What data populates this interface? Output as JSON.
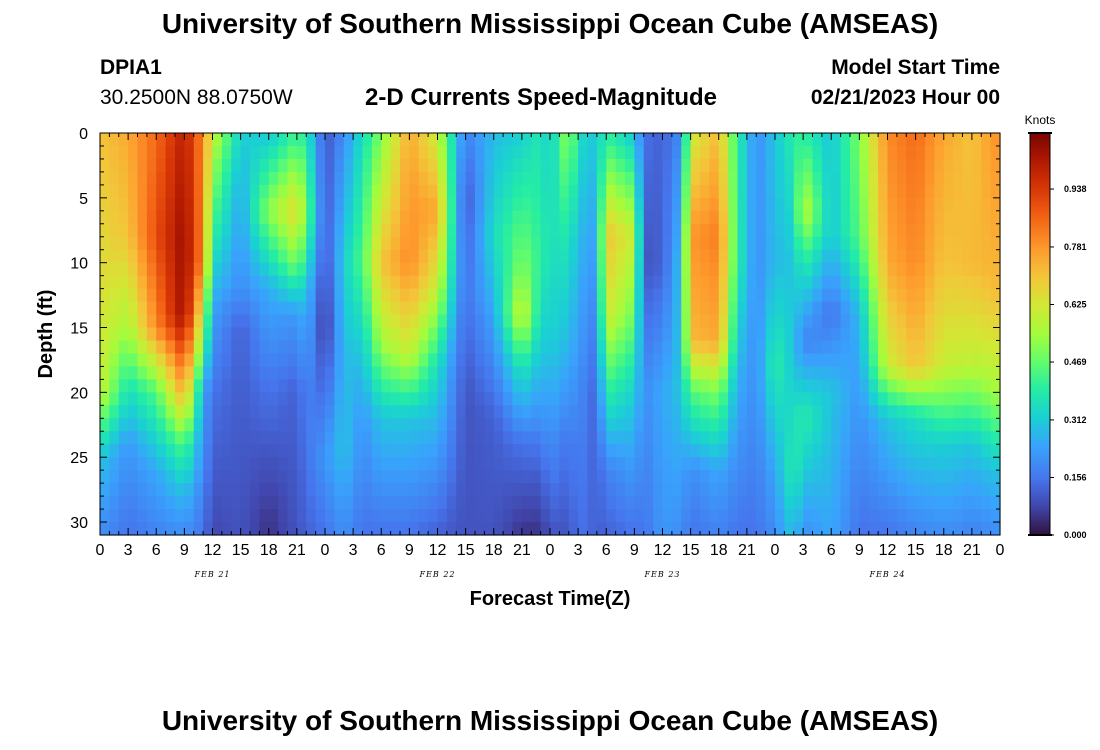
{
  "header": {
    "title": "University of Southern Mississippi Ocean Cube (AMSEAS)",
    "station": "DPIA1",
    "coordinates": "30.2500N  88.0750W",
    "chart_title": "2-D Currents Speed-Magnitude",
    "model_start_label": "Model Start Time",
    "model_start_value": "02/21/2023 Hour 00"
  },
  "footer": {
    "title": "University of Southern Mississippi Ocean Cube (AMSEAS)"
  },
  "chart_data": {
    "type": "heatmap",
    "title": "2-D Currents Speed-Magnitude",
    "xlabel": "Forecast Time(Z)",
    "ylabel": "Depth (ft)",
    "x_range": [
      0,
      96
    ],
    "x_unit": "hours since 02/21/2023 00Z",
    "x_tick_values": [
      0,
      3,
      6,
      9,
      12,
      15,
      18,
      21,
      24,
      27,
      30,
      33,
      36,
      39,
      42,
      45,
      48,
      51,
      54,
      57,
      60,
      63,
      66,
      69,
      72,
      75,
      78,
      81,
      84,
      87,
      90,
      93,
      96
    ],
    "x_tick_labels": [
      "0",
      "3",
      "6",
      "9",
      "12",
      "15",
      "18",
      "21",
      "0",
      "3",
      "6",
      "9",
      "12",
      "15",
      "18",
      "21",
      "0",
      "3",
      "6",
      "9",
      "12",
      "15",
      "18",
      "21",
      "0",
      "3",
      "6",
      "9",
      "12",
      "15",
      "18",
      "21",
      "0"
    ],
    "date_labels": [
      {
        "text": "FEB 21",
        "hour": 12
      },
      {
        "text": "FEB 22",
        "hour": 36
      },
      {
        "text": "FEB 23",
        "hour": 60
      },
      {
        "text": "FEB 24",
        "hour": 84
      }
    ],
    "y_range": [
      0,
      31
    ],
    "y_inverted": true,
    "y_ticks": [
      0,
      5,
      10,
      15,
      20,
      25,
      30
    ],
    "colorbar": {
      "unit": "Knots",
      "range": [
        0,
        1.09
      ],
      "ticks": [
        "0.000",
        "0.156",
        "0.312",
        "0.469",
        "0.625",
        "0.781",
        "0.938"
      ],
      "tick_values": [
        0.0,
        0.156,
        0.312,
        0.469,
        0.625,
        0.781,
        0.938
      ]
    },
    "columns": [
      {
        "hour": 0,
        "profile": [
          [
            0,
            0.7
          ],
          [
            20,
            0.6
          ],
          [
            25,
            0.3
          ],
          [
            31,
            0.2
          ]
        ]
      },
      {
        "hour": 3,
        "profile": [
          [
            0,
            0.75
          ],
          [
            8,
            0.7
          ],
          [
            15,
            0.55
          ],
          [
            20,
            0.35
          ],
          [
            24,
            0.22
          ],
          [
            31,
            0.15
          ]
        ]
      },
      {
        "hour": 6,
        "profile": [
          [
            0,
            0.85
          ],
          [
            8,
            0.9
          ],
          [
            15,
            0.8
          ],
          [
            20,
            0.45
          ],
          [
            26,
            0.25
          ],
          [
            31,
            0.18
          ]
        ]
      },
      {
        "hour": 9,
        "profile": [
          [
            0,
            1.0
          ],
          [
            8,
            1.05
          ],
          [
            14,
            1.05
          ],
          [
            20,
            0.75
          ],
          [
            24,
            0.45
          ],
          [
            28,
            0.28
          ],
          [
            31,
            0.2
          ]
        ]
      },
      {
        "hour": 11,
        "profile": [
          [
            0,
            0.8
          ],
          [
            10,
            0.8
          ],
          [
            16,
            0.5
          ],
          [
            20,
            0.25
          ],
          [
            31,
            0.15
          ]
        ]
      },
      {
        "hour": 12,
        "profile": [
          [
            0,
            0.6
          ],
          [
            8,
            0.4
          ],
          [
            13,
            0.25
          ],
          [
            20,
            0.15
          ],
          [
            31,
            0.08
          ]
        ]
      },
      {
        "hour": 15,
        "profile": [
          [
            0,
            0.32
          ],
          [
            5,
            0.25
          ],
          [
            12,
            0.2
          ],
          [
            15,
            0.12
          ],
          [
            31,
            0.1
          ]
        ]
      },
      {
        "hour": 18,
        "profile": [
          [
            0,
            0.3
          ],
          [
            6,
            0.52
          ],
          [
            12,
            0.26
          ],
          [
            20,
            0.15
          ],
          [
            30,
            0.05
          ]
        ]
      },
      {
        "hour": 21,
        "profile": [
          [
            0,
            0.42
          ],
          [
            6,
            0.66
          ],
          [
            10,
            0.5
          ],
          [
            14,
            0.22
          ],
          [
            20,
            0.12
          ],
          [
            31,
            0.1
          ]
        ]
      },
      {
        "hour": 22,
        "profile": [
          [
            0,
            0.38
          ],
          [
            6,
            0.5
          ],
          [
            12,
            0.3
          ],
          [
            20,
            0.18
          ],
          [
            31,
            0.12
          ]
        ]
      },
      {
        "hour": 24,
        "profile": [
          [
            0,
            0.1
          ],
          [
            8,
            0.1
          ],
          [
            15,
            0.05
          ],
          [
            25,
            0.22
          ],
          [
            31,
            0.15
          ]
        ]
      },
      {
        "hour": 26,
        "profile": [
          [
            0,
            0.2
          ],
          [
            10,
            0.32
          ],
          [
            18,
            0.28
          ],
          [
            24,
            0.3
          ],
          [
            31,
            0.2
          ]
        ]
      },
      {
        "hour": 28,
        "profile": [
          [
            0,
            0.35
          ],
          [
            10,
            0.45
          ],
          [
            16,
            0.32
          ],
          [
            22,
            0.22
          ],
          [
            31,
            0.15
          ]
        ]
      },
      {
        "hour": 30,
        "profile": [
          [
            0,
            0.5
          ],
          [
            10,
            0.7
          ],
          [
            16,
            0.55
          ],
          [
            22,
            0.3
          ],
          [
            31,
            0.15
          ]
        ]
      },
      {
        "hour": 33,
        "profile": [
          [
            0,
            0.75
          ],
          [
            10,
            0.8
          ],
          [
            17,
            0.6
          ],
          [
            22,
            0.3
          ],
          [
            31,
            0.15
          ]
        ]
      },
      {
        "hour": 36,
        "profile": [
          [
            0,
            0.6
          ],
          [
            6,
            0.75
          ],
          [
            12,
            0.6
          ],
          [
            18,
            0.35
          ],
          [
            31,
            0.12
          ]
        ]
      },
      {
        "hour": 38,
        "profile": [
          [
            0,
            0.3
          ],
          [
            10,
            0.28
          ],
          [
            18,
            0.18
          ],
          [
            31,
            0.1
          ]
        ]
      },
      {
        "hour": 39,
        "profile": [
          [
            0,
            0.18
          ],
          [
            5,
            0.1
          ],
          [
            12,
            0.15
          ],
          [
            20,
            0.1
          ],
          [
            31,
            0.1
          ]
        ]
      },
      {
        "hour": 42,
        "profile": [
          [
            0,
            0.28
          ],
          [
            8,
            0.35
          ],
          [
            14,
            0.25
          ],
          [
            22,
            0.12
          ],
          [
            31,
            0.1
          ]
        ]
      },
      {
        "hour": 45,
        "profile": [
          [
            0,
            0.32
          ],
          [
            10,
            0.5
          ],
          [
            14,
            0.62
          ],
          [
            18,
            0.38
          ],
          [
            24,
            0.15
          ],
          [
            31,
            0.05
          ]
        ]
      },
      {
        "hour": 47,
        "profile": [
          [
            0,
            0.38
          ],
          [
            10,
            0.4
          ],
          [
            18,
            0.28
          ],
          [
            26,
            0.12
          ],
          [
            31,
            0.05
          ]
        ]
      },
      {
        "hour": 48,
        "profile": [
          [
            0,
            0.3
          ],
          [
            8,
            0.36
          ],
          [
            16,
            0.32
          ],
          [
            24,
            0.2
          ],
          [
            31,
            0.1
          ]
        ]
      },
      {
        "hour": 50,
        "profile": [
          [
            0,
            0.55
          ],
          [
            8,
            0.38
          ],
          [
            16,
            0.28
          ],
          [
            24,
            0.15
          ],
          [
            31,
            0.1
          ]
        ]
      },
      {
        "hour": 51,
        "profile": [
          [
            0,
            0.35
          ],
          [
            8,
            0.28
          ],
          [
            20,
            0.2
          ],
          [
            31,
            0.15
          ]
        ]
      },
      {
        "hour": 53,
        "profile": [
          [
            0,
            0.3
          ],
          [
            10,
            0.22
          ],
          [
            20,
            0.12
          ],
          [
            31,
            0.12
          ]
        ]
      },
      {
        "hour": 54,
        "profile": [
          [
            0,
            0.4
          ],
          [
            8,
            0.7
          ],
          [
            14,
            0.62
          ],
          [
            20,
            0.4
          ],
          [
            26,
            0.18
          ],
          [
            31,
            0.12
          ]
        ]
      },
      {
        "hour": 57,
        "profile": [
          [
            0,
            0.3
          ],
          [
            8,
            0.6
          ],
          [
            14,
            0.48
          ],
          [
            20,
            0.32
          ],
          [
            31,
            0.15
          ]
        ]
      },
      {
        "hour": 58,
        "profile": [
          [
            0,
            0.15
          ],
          [
            10,
            0.1
          ],
          [
            20,
            0.2
          ],
          [
            31,
            0.15
          ]
        ]
      },
      {
        "hour": 60,
        "profile": [
          [
            0,
            0.12
          ],
          [
            10,
            0.12
          ],
          [
            20,
            0.25
          ],
          [
            31,
            0.22
          ]
        ]
      },
      {
        "hour": 62,
        "profile": [
          [
            0,
            0.2
          ],
          [
            10,
            0.3
          ],
          [
            20,
            0.3
          ],
          [
            31,
            0.2
          ]
        ]
      },
      {
        "hour": 63,
        "profile": [
          [
            0,
            0.6
          ],
          [
            8,
            0.78
          ],
          [
            16,
            0.72
          ],
          [
            20,
            0.45
          ],
          [
            26,
            0.2
          ],
          [
            31,
            0.15
          ]
        ]
      },
      {
        "hour": 66,
        "profile": [
          [
            0,
            0.72
          ],
          [
            8,
            0.82
          ],
          [
            16,
            0.75
          ],
          [
            20,
            0.5
          ],
          [
            26,
            0.25
          ],
          [
            31,
            0.18
          ]
        ]
      },
      {
        "hour": 68,
        "profile": [
          [
            0,
            0.4
          ],
          [
            10,
            0.4
          ],
          [
            20,
            0.25
          ],
          [
            31,
            0.15
          ]
        ]
      },
      {
        "hour": 70,
        "profile": [
          [
            0,
            0.2
          ],
          [
            10,
            0.2
          ],
          [
            20,
            0.2
          ],
          [
            31,
            0.15
          ]
        ]
      },
      {
        "hour": 72,
        "profile": [
          [
            0,
            0.3
          ],
          [
            10,
            0.28
          ],
          [
            18,
            0.4
          ],
          [
            26,
            0.25
          ],
          [
            31,
            0.2
          ]
        ]
      },
      {
        "hour": 74,
        "profile": [
          [
            0,
            0.4
          ],
          [
            10,
            0.3
          ],
          [
            18,
            0.3
          ],
          [
            26,
            0.4
          ],
          [
            31,
            0.3
          ]
        ]
      },
      {
        "hour": 75,
        "profile": [
          [
            0,
            0.4
          ],
          [
            6,
            0.6
          ],
          [
            10,
            0.4
          ],
          [
            16,
            0.18
          ],
          [
            22,
            0.4
          ],
          [
            31,
            0.2
          ]
        ]
      },
      {
        "hour": 78,
        "profile": [
          [
            0,
            0.3
          ],
          [
            8,
            0.3
          ],
          [
            14,
            0.15
          ],
          [
            20,
            0.3
          ],
          [
            31,
            0.25
          ]
        ]
      },
      {
        "hour": 81,
        "profile": [
          [
            0,
            0.5
          ],
          [
            8,
            0.45
          ],
          [
            14,
            0.28
          ],
          [
            20,
            0.22
          ],
          [
            31,
            0.15
          ]
        ]
      },
      {
        "hour": 84,
        "profile": [
          [
            0,
            0.8
          ],
          [
            10,
            0.75
          ],
          [
            18,
            0.6
          ],
          [
            22,
            0.3
          ],
          [
            31,
            0.15
          ]
        ]
      },
      {
        "hour": 87,
        "profile": [
          [
            0,
            0.85
          ],
          [
            10,
            0.8
          ],
          [
            18,
            0.7
          ],
          [
            22,
            0.35
          ],
          [
            31,
            0.18
          ]
        ]
      },
      {
        "hour": 90,
        "profile": [
          [
            0,
            0.75
          ],
          [
            10,
            0.7
          ],
          [
            18,
            0.6
          ],
          [
            24,
            0.32
          ],
          [
            31,
            0.2
          ]
        ]
      },
      {
        "hour": 93,
        "profile": [
          [
            0,
            0.7
          ],
          [
            10,
            0.72
          ],
          [
            18,
            0.58
          ],
          [
            24,
            0.3
          ],
          [
            31,
            0.18
          ]
        ]
      },
      {
        "hour": 96,
        "profile": [
          [
            0,
            0.8
          ],
          [
            12,
            0.72
          ],
          [
            20,
            0.55
          ],
          [
            26,
            0.3
          ],
          [
            31,
            0.2
          ]
        ]
      }
    ]
  }
}
